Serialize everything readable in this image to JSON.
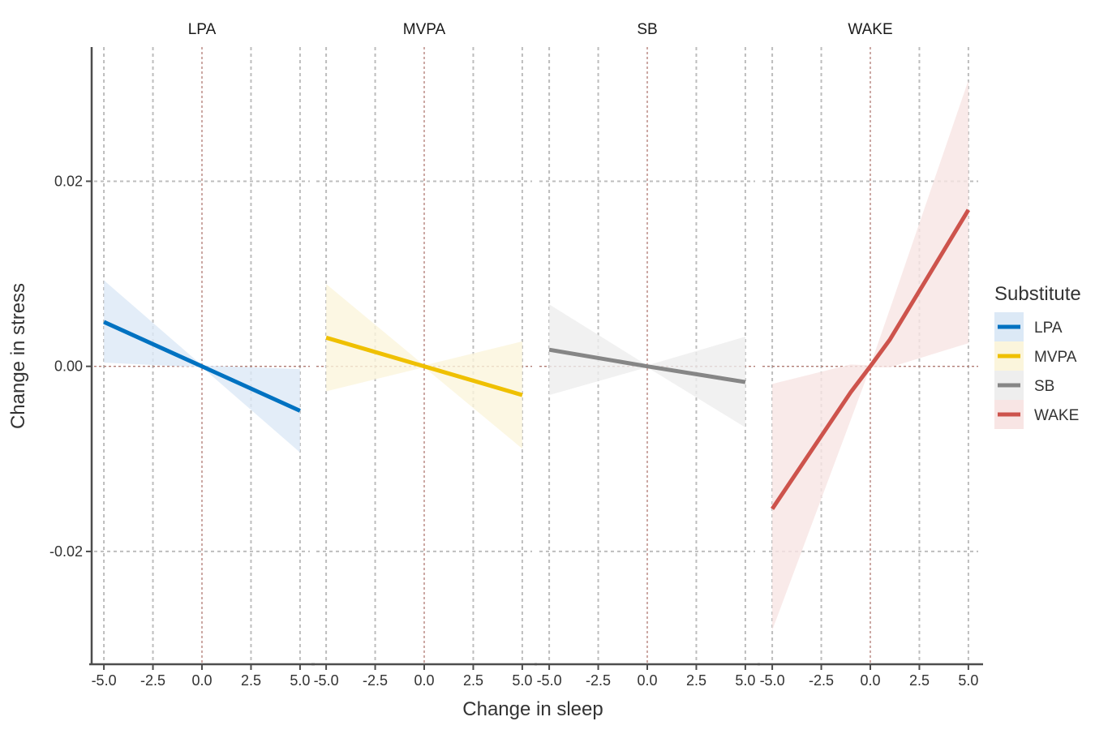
{
  "chart_data": {
    "type": "line",
    "xlabel": "Change in sleep",
    "ylabel": "Change in stress",
    "xlim": [
      -5.5,
      5.5
    ],
    "ylim": [
      -0.0321,
      0.0345
    ],
    "x_ticks": [
      -5.0,
      -2.5,
      0.0,
      2.5,
      5.0
    ],
    "x_tick_labels": [
      "-5.0",
      "-2.5",
      "0.0",
      "2.5",
      "5.0"
    ],
    "y_ticks": [
      -0.02,
      0.0,
      0.02
    ],
    "y_tick_labels": [
      "-0.02",
      "0.00",
      "0.02"
    ],
    "grid": "dotted major gridlines; reference lines at x=0 and y=0",
    "legend": {
      "title": "Substitute",
      "position": "right",
      "entries": [
        {
          "label": "LPA",
          "line_color": "#0072c1",
          "fill_color": "#dce9f6"
        },
        {
          "label": "MVPA",
          "line_color": "#efc000",
          "fill_color": "#fbf5dc"
        },
        {
          "label": "SB",
          "line_color": "#868686",
          "fill_color": "#eeeeee"
        },
        {
          "label": "WAKE",
          "line_color": "#cd534c",
          "fill_color": "#f8e5e4"
        }
      ]
    },
    "panels": [
      {
        "strip": "LPA",
        "line_color": "#0072c1",
        "fill_color": "#dce9f6",
        "points": [
          {
            "x": -5,
            "y": 0.0048,
            "lower": 0.0004,
            "upper": 0.0093
          },
          {
            "x": 0,
            "y": 0.0,
            "lower": -0.0001,
            "upper": 0.0001
          },
          {
            "x": 5,
            "y": -0.0048,
            "lower": -0.0093,
            "upper": -0.0003
          }
        ]
      },
      {
        "strip": "MVPA",
        "line_color": "#efc000",
        "fill_color": "#fbf5dc",
        "points": [
          {
            "x": -5,
            "y": 0.0031,
            "lower": -0.0027,
            "upper": 0.0089
          },
          {
            "x": 0,
            "y": 0.0,
            "lower": -0.0001,
            "upper": 0.0001
          },
          {
            "x": 5,
            "y": -0.0031,
            "lower": -0.0089,
            "upper": 0.0027
          }
        ]
      },
      {
        "strip": "SB",
        "line_color": "#868686",
        "fill_color": "#eeeeee",
        "points": [
          {
            "x": -5,
            "y": 0.0018,
            "lower": -0.0031,
            "upper": 0.0067
          },
          {
            "x": 0,
            "y": 0.0,
            "lower": -0.0001,
            "upper": 0.0001
          },
          {
            "x": 5,
            "y": -0.0017,
            "lower": -0.0066,
            "upper": 0.0032
          }
        ]
      },
      {
        "strip": "WAKE",
        "line_color": "#cd534c",
        "fill_color": "#f8e5e4",
        "points": [
          {
            "x": -5,
            "y": -0.0154,
            "lower": -0.0285,
            "upper": -0.0019
          },
          {
            "x": -1,
            "y": -0.0028,
            "lower": -0.0058,
            "upper": 0.0002
          },
          {
            "x": 0,
            "y": 0.0,
            "lower": -0.0001,
            "upper": 0.0001
          },
          {
            "x": 1,
            "y": 0.0029,
            "lower": -0.0001,
            "upper": 0.0062
          },
          {
            "x": 5,
            "y": 0.0169,
            "lower": 0.0025,
            "upper": 0.0309
          }
        ]
      }
    ]
  }
}
